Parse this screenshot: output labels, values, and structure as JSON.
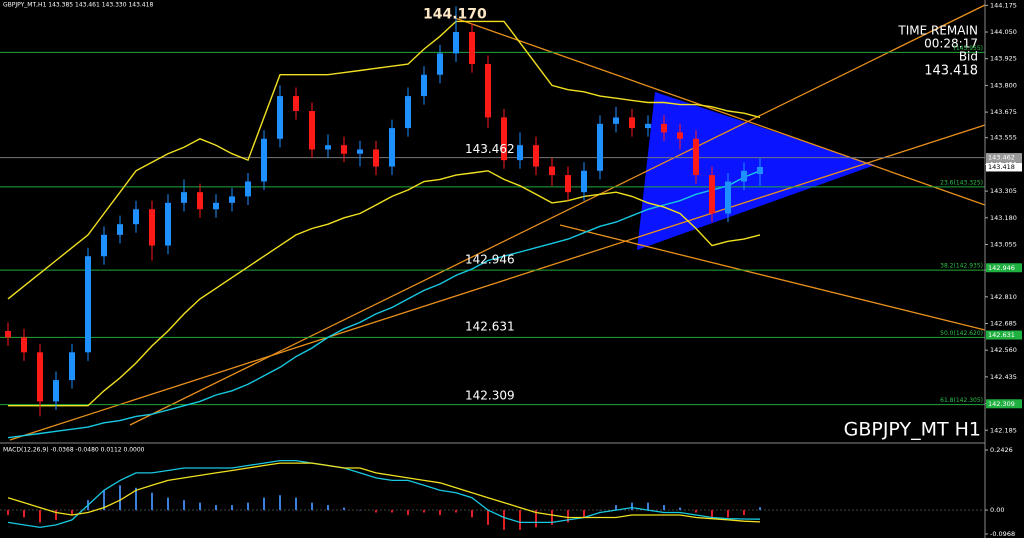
{
  "chart_data": [
    {
      "type": "candlestick",
      "header": "GBPJPY_MT,H1 143.385 143.461 143.330 143.418",
      "title": "GBPJPY_MT H1",
      "timer": {
        "title": "TIME REMAIN",
        "time": "00:28:17",
        "bid_label": "Bid",
        "bid": 143.418
      },
      "open": [
        142.65,
        142.62,
        142.55,
        142.32,
        142.42,
        142.55,
        143.0,
        143.1,
        143.15,
        143.22,
        143.05,
        143.25,
        143.3,
        143.22,
        143.25,
        143.28,
        143.35,
        143.55,
        143.75,
        143.68,
        143.5,
        143.52,
        143.48,
        143.5,
        143.42,
        143.6,
        143.75,
        143.85,
        143.95,
        144.05,
        143.9,
        143.65,
        143.45,
        143.52,
        143.42,
        143.38,
        143.3,
        143.4,
        143.62,
        143.65,
        143.6,
        143.62,
        143.58,
        143.55,
        143.38,
        143.2,
        143.35,
        143.385
      ],
      "high": [
        142.69,
        142.66,
        142.59,
        142.46,
        142.59,
        143.04,
        143.14,
        143.19,
        143.26,
        143.26,
        143.29,
        143.36,
        143.34,
        143.29,
        143.32,
        143.39,
        143.59,
        143.8,
        143.79,
        143.72,
        143.57,
        143.56,
        143.54,
        143.54,
        143.64,
        143.79,
        143.89,
        143.99,
        144.17,
        144.09,
        143.94,
        143.69,
        143.58,
        143.56,
        143.46,
        143.42,
        143.44,
        143.66,
        143.7,
        143.69,
        143.66,
        143.66,
        143.62,
        143.59,
        143.42,
        143.39,
        143.44,
        143.461
      ],
      "low": [
        142.58,
        142.51,
        142.25,
        142.28,
        142.38,
        142.51,
        142.96,
        143.06,
        143.11,
        142.98,
        143.01,
        143.21,
        143.18,
        143.18,
        143.21,
        143.24,
        143.31,
        143.51,
        143.64,
        143.46,
        143.46,
        143.44,
        143.42,
        143.38,
        143.38,
        143.56,
        143.71,
        143.81,
        143.91,
        143.86,
        143.6,
        143.41,
        143.41,
        143.38,
        143.33,
        143.26,
        143.26,
        143.36,
        143.58,
        143.56,
        143.56,
        143.54,
        143.5,
        143.34,
        143.16,
        143.16,
        143.31,
        143.33
      ],
      "close": [
        142.62,
        142.55,
        142.32,
        142.42,
        142.55,
        143.0,
        143.1,
        143.15,
        143.22,
        143.05,
        143.25,
        143.3,
        143.22,
        143.25,
        143.28,
        143.35,
        143.55,
        143.75,
        143.68,
        143.5,
        143.52,
        143.48,
        143.5,
        143.42,
        143.6,
        143.75,
        143.85,
        143.95,
        144.05,
        143.9,
        143.65,
        143.45,
        143.52,
        143.42,
        143.38,
        143.3,
        143.4,
        143.62,
        143.65,
        143.6,
        143.62,
        143.58,
        143.55,
        143.38,
        143.2,
        143.35,
        143.4,
        143.418
      ],
      "colors": {
        "up": "#1e90ff",
        "down": "#ff1a1a"
      },
      "series": [
        {
          "color": "#18c8e0",
          "values": [
            142.15,
            142.16,
            142.17,
            142.18,
            142.19,
            142.2,
            142.22,
            142.23,
            142.25,
            142.26,
            142.28,
            142.3,
            142.32,
            142.35,
            142.37,
            142.4,
            142.44,
            142.48,
            142.53,
            142.57,
            142.62,
            142.66,
            142.69,
            142.73,
            142.76,
            142.8,
            142.84,
            142.87,
            142.91,
            142.94,
            142.98,
            143.0,
            143.02,
            143.04,
            143.06,
            143.08,
            143.11,
            143.14,
            143.16,
            143.19,
            143.22,
            143.24,
            143.26,
            143.29,
            143.31,
            143.33,
            143.37,
            143.4
          ]
        },
        {
          "color": "#f0e020",
          "values": [
            142.8,
            142.86,
            142.92,
            142.98,
            143.04,
            143.1,
            143.2,
            143.3,
            143.4,
            143.44,
            143.48,
            143.51,
            143.55,
            143.52,
            143.48,
            143.45,
            143.65,
            143.85,
            143.85,
            143.85,
            143.85,
            143.86,
            143.87,
            143.88,
            143.89,
            143.9,
            143.97,
            144.03,
            144.1,
            144.1,
            144.1,
            144.1,
            144.0,
            143.9,
            143.8,
            143.78,
            143.77,
            143.75,
            143.74,
            143.73,
            143.72,
            143.72,
            143.71,
            143.71,
            143.7,
            143.68,
            143.67,
            143.65
          ]
        },
        {
          "color": "#f0e020",
          "values": [
            142.3,
            142.3,
            142.3,
            142.3,
            142.3,
            142.3,
            142.37,
            142.43,
            142.5,
            142.58,
            142.65,
            142.73,
            142.8,
            142.85,
            142.9,
            142.95,
            143.0,
            143.05,
            143.1,
            143.13,
            143.15,
            143.18,
            143.2,
            143.24,
            143.28,
            143.31,
            143.35,
            143.36,
            143.38,
            143.39,
            143.4,
            143.36,
            143.33,
            143.29,
            143.25,
            143.26,
            143.28,
            143.29,
            143.3,
            143.28,
            143.25,
            143.23,
            143.2,
            143.13,
            143.05,
            143.07,
            143.08,
            143.1
          ]
        }
      ],
      "fib_levels": [
        {
          "value": 143.955,
          "label": "(143.955)"
        },
        {
          "value": 143.325,
          "label": "23.6(143.325)"
        },
        {
          "value": 142.935,
          "label": "38.2(142.935)"
        },
        {
          "value": 142.62,
          "label": "50.0(142.620)"
        },
        {
          "value": 142.305,
          "label": "61.8(142.305)"
        }
      ],
      "level_labels": [
        {
          "value": 144.17,
          "label": "144.170"
        },
        143.462,
        142.946,
        142.631,
        142.309
      ],
      "price_tags": [
        143.462,
        143.418,
        142.946,
        142.631,
        142.309
      ],
      "ylim": [
        142.13,
        144.2
      ],
      "yticks": [
        144.175,
        {
          "value": 144.05,
          "label": "144.050"
        },
        143.925,
        {
          "value": 143.8,
          "label": "143.800"
        },
        143.675,
        143.555,
        {
          "value": 143.43,
          "label": "143.430"
        },
        143.305,
        {
          "value": 143.18,
          "label": "143.180"
        },
        143.055,
        142.935,
        {
          "value": 142.81,
          "label": "142.810"
        },
        142.685,
        {
          "value": 142.56,
          "label": "142.560"
        },
        142.435,
        {
          "value": 142.31,
          "label": "142.310"
        },
        142.185
      ]
    },
    {
      "type": "macd",
      "header": "MACD(12,26,9) -0.0368 -0.0480 0.0112 0.0000",
      "histogram": {
        "up": "#3a7fd8",
        "down": "#e02020",
        "values": [
          -0.02,
          -0.03,
          -0.05,
          -0.04,
          -0.02,
          0.04,
          0.08,
          0.1,
          0.09,
          0.07,
          0.05,
          0.04,
          0.03,
          0.02,
          0.02,
          0.03,
          0.05,
          0.06,
          0.05,
          0.03,
          0.02,
          0.01,
          0.0,
          -0.01,
          -0.01,
          -0.02,
          -0.01,
          -0.02,
          -0.01,
          -0.03,
          -0.06,
          -0.08,
          -0.08,
          -0.07,
          -0.06,
          -0.05,
          -0.03,
          0.0,
          0.02,
          0.03,
          0.03,
          0.02,
          0.01,
          -0.01,
          -0.03,
          -0.03,
          -0.02,
          0.0112
        ]
      },
      "series": [
        {
          "color": "#18c8e0",
          "values": [
            -0.05,
            -0.06,
            -0.07,
            -0.06,
            -0.04,
            0.02,
            0.08,
            0.12,
            0.15,
            0.15,
            0.16,
            0.17,
            0.17,
            0.17,
            0.17,
            0.18,
            0.19,
            0.2,
            0.2,
            0.19,
            0.18,
            0.17,
            0.15,
            0.13,
            0.12,
            0.12,
            0.1,
            0.08,
            0.07,
            0.05,
            0.0,
            -0.03,
            -0.05,
            -0.05,
            -0.05,
            -0.04,
            -0.03,
            -0.01,
            0.0,
            0.01,
            0.0,
            -0.01,
            -0.01,
            -0.02,
            -0.03,
            -0.035,
            -0.036,
            -0.0368
          ]
        },
        {
          "color": "#f0e020",
          "values": [
            0.05,
            0.03,
            0.01,
            -0.01,
            -0.02,
            -0.01,
            0.01,
            0.04,
            0.08,
            0.1,
            0.12,
            0.13,
            0.14,
            0.15,
            0.16,
            0.17,
            0.18,
            0.19,
            0.19,
            0.19,
            0.18,
            0.17,
            0.17,
            0.15,
            0.14,
            0.13,
            0.12,
            0.11,
            0.09,
            0.07,
            0.05,
            0.03,
            0.01,
            -0.01,
            -0.02,
            -0.03,
            -0.03,
            -0.03,
            -0.03,
            -0.02,
            -0.02,
            -0.02,
            -0.02,
            -0.03,
            -0.035,
            -0.04,
            -0.045,
            -0.048
          ]
        }
      ],
      "ylim": [
        -0.113,
        0.263
      ],
      "yticks": [
        0.2426,
        {
          "value": 0,
          "label": "0.00"
        },
        -0.0968
      ]
    }
  ]
}
